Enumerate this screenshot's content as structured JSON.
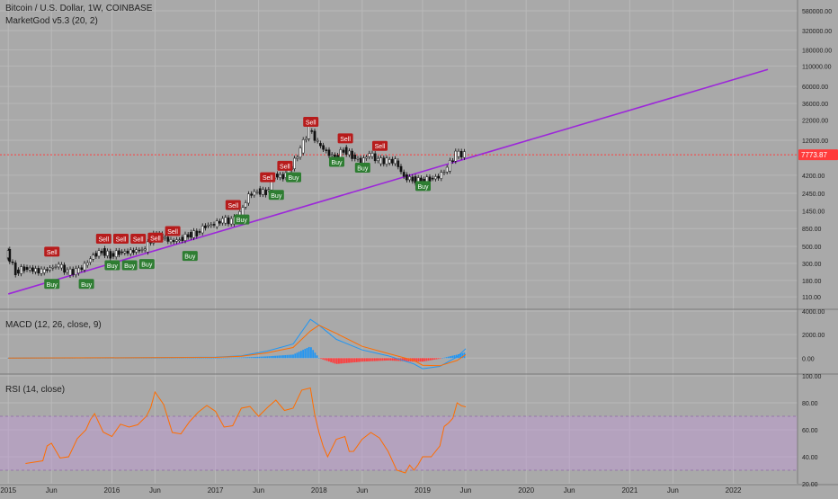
{
  "header": {
    "symbol": "Bitcoin / U.S. Dollar, 1W, COINBASE",
    "indicator": "MarketGod v5.3 (20, 2)"
  },
  "colors": {
    "background": "#a9a9a9",
    "grid": "#b9b9b9",
    "trendline": "#9c27d9",
    "up_candle": "#ffffff",
    "down_candle": "#111111",
    "sell_badge": "#b71c1c",
    "buy_badge": "#2e7d32",
    "price_line": "#ff3b3b",
    "macd_line": "#2196f3",
    "signal_line": "#ff6d00",
    "hist_pos": "#2196f3",
    "hist_neg": "#ff3b3b",
    "rsi_line": "#ff6d00",
    "rsi_band": "#c29ad6"
  },
  "price_tag": "7773.87",
  "chart_data": [
    {
      "type": "candlestick",
      "title": "Bitcoin / U.S. Dollar, 1W, COINBASE",
      "y_scale": "log",
      "ylim": [
        80,
        800000
      ],
      "y_ticks": [
        "580000.00",
        "320000.00",
        "180000.00",
        "110000.00",
        "60000.00",
        "36000.00",
        "22000.00",
        "12000.00",
        "7773.87",
        "4200.00",
        "2450.00",
        "1450.00",
        "850.00",
        "500.00",
        "300.00",
        "180.00",
        "110.00"
      ],
      "x_ticks": [
        "2015",
        "Jun",
        "2016",
        "Jun",
        "2017",
        "Jun",
        "2018",
        "Jun",
        "2019",
        "Jun",
        "2020",
        "Jun",
        "2021",
        "Jun",
        "2022"
      ],
      "grid": true,
      "last_price": 7773.87,
      "price_path": [
        [
          "2015-01",
          330
        ],
        [
          "2015-01",
          420
        ],
        [
          "2015-02",
          230
        ],
        [
          "2015-03",
          260
        ],
        [
          "2015-05",
          235
        ],
        [
          "2015-07",
          285
        ],
        [
          "2015-08",
          230
        ],
        [
          "2015-09",
          235
        ],
        [
          "2015-10",
          280
        ],
        [
          "2015-11",
          380
        ],
        [
          "2015-12",
          430
        ],
        [
          "2016-01",
          380
        ],
        [
          "2016-02",
          420
        ],
        [
          "2016-03",
          420
        ],
        [
          "2016-05",
          460
        ],
        [
          "2016-06",
          680
        ],
        [
          "2016-07",
          660
        ],
        [
          "2016-08",
          580
        ],
        [
          "2016-09",
          610
        ],
        [
          "2016-10",
          700
        ],
        [
          "2016-11",
          740
        ],
        [
          "2016-12",
          930
        ],
        [
          "2017-01",
          960
        ],
        [
          "2017-02",
          1100
        ],
        [
          "2017-03",
          1050
        ],
        [
          "2017-04",
          1300
        ],
        [
          "2017-05",
          2300
        ],
        [
          "2017-06",
          2600
        ],
        [
          "2017-07",
          2500
        ],
        [
          "2017-08",
          4200
        ],
        [
          "2017-09",
          4000
        ],
        [
          "2017-10",
          5500
        ],
        [
          "2017-11",
          9000
        ],
        [
          "2017-12",
          17000
        ],
        [
          "2018-01",
          11000
        ],
        [
          "2018-02",
          8500
        ],
        [
          "2018-03",
          7000
        ],
        [
          "2018-04",
          9000
        ],
        [
          "2018-05",
          7500
        ],
        [
          "2018-06",
          6300
        ],
        [
          "2018-07",
          8000
        ],
        [
          "2018-08",
          6500
        ],
        [
          "2018-09",
          6400
        ],
        [
          "2018-10",
          6400
        ],
        [
          "2018-11",
          4000
        ],
        [
          "2018-12",
          3700
        ],
        [
          "2019-01",
          3500
        ],
        [
          "2019-02",
          3800
        ],
        [
          "2019-03",
          4000
        ],
        [
          "2019-04",
          5200
        ],
        [
          "2019-05",
          8000
        ],
        [
          "2019-06",
          7773.87
        ]
      ],
      "trendline": [
        [
          "2015-01",
          120
        ],
        [
          "2022-05",
          100000
        ]
      ],
      "signals": [
        {
          "label": "Sell",
          "date": "2015-06",
          "price": 420
        },
        {
          "label": "Buy",
          "date": "2015-06",
          "price": 160
        },
        {
          "label": "Buy",
          "date": "2015-10",
          "price": 160
        },
        {
          "label": "Sell",
          "date": "2015-12",
          "price": 620
        },
        {
          "label": "Sell",
          "date": "2016-02",
          "price": 620
        },
        {
          "label": "Sell",
          "date": "2016-04",
          "price": 620
        },
        {
          "label": "Buy",
          "date": "2016-01",
          "price": 280
        },
        {
          "label": "Buy",
          "date": "2016-03",
          "price": 280
        },
        {
          "label": "Buy",
          "date": "2016-05",
          "price": 290
        },
        {
          "label": "Sell",
          "date": "2016-06",
          "price": 640
        },
        {
          "label": "Sell",
          "date": "2016-08",
          "price": 780
        },
        {
          "label": "Buy",
          "date": "2016-10",
          "price": 370
        },
        {
          "label": "Sell",
          "date": "2017-03",
          "price": 1700
        },
        {
          "label": "Buy",
          "date": "2017-04",
          "price": 1100
        },
        {
          "label": "Sell",
          "date": "2017-07",
          "price": 3900
        },
        {
          "label": "Buy",
          "date": "2017-08",
          "price": 2300
        },
        {
          "label": "Sell",
          "date": "2017-09",
          "price": 5500
        },
        {
          "label": "Buy",
          "date": "2017-10",
          "price": 3900
        },
        {
          "label": "Sell",
          "date": "2017-12",
          "price": 20500
        },
        {
          "label": "Buy",
          "date": "2018-03",
          "price": 6200
        },
        {
          "label": "Sell",
          "date": "2018-04",
          "price": 12500
        },
        {
          "label": "Buy",
          "date": "2018-06",
          "price": 5200
        },
        {
          "label": "Sell",
          "date": "2018-08",
          "price": 10000
        },
        {
          "label": "Buy",
          "date": "2019-01",
          "price": 3000
        }
      ]
    },
    {
      "type": "line",
      "title": "MACD (12, 26, close, 9)",
      "ylim": [
        -1200,
        4000
      ],
      "y_ticks": [
        "4000.00",
        "2000.00",
        "0.00"
      ],
      "series": [
        {
          "name": "MACD",
          "values": [
            [
              "2015-01",
              0
            ],
            [
              "2016-06",
              50
            ],
            [
              "2017-01",
              80
            ],
            [
              "2017-04",
              200
            ],
            [
              "2017-07",
              600
            ],
            [
              "2017-10",
              1200
            ],
            [
              "2017-12",
              3300
            ],
            [
              "2018-01",
              2800
            ],
            [
              "2018-03",
              1600
            ],
            [
              "2018-06",
              700
            ],
            [
              "2018-09",
              200
            ],
            [
              "2018-12",
              -500
            ],
            [
              "2019-01",
              -900
            ],
            [
              "2019-03",
              -700
            ],
            [
              "2019-05",
              100
            ],
            [
              "2019-06",
              800
            ]
          ]
        },
        {
          "name": "Signal",
          "values": [
            [
              "2015-01",
              0
            ],
            [
              "2016-06",
              40
            ],
            [
              "2017-01",
              60
            ],
            [
              "2017-04",
              150
            ],
            [
              "2017-07",
              450
            ],
            [
              "2017-10",
              900
            ],
            [
              "2017-12",
              2300
            ],
            [
              "2018-01",
              2800
            ],
            [
              "2018-03",
              2100
            ],
            [
              "2018-06",
              1000
            ],
            [
              "2018-09",
              400
            ],
            [
              "2018-12",
              -200
            ],
            [
              "2019-01",
              -600
            ],
            [
              "2019-03",
              -650
            ],
            [
              "2019-05",
              -200
            ],
            [
              "2019-06",
              300
            ]
          ]
        }
      ]
    },
    {
      "type": "line",
      "title": "RSI (14, close)",
      "ylim": [
        20,
        100
      ],
      "y_ticks": [
        "100.00",
        "80.00",
        "60.00",
        "40.00",
        "20.00"
      ],
      "band": [
        30,
        70
      ],
      "series": [
        {
          "name": "RSI",
          "values": [
            [
              "2015-03",
              35
            ],
            [
              "2015-05",
              37
            ],
            [
              "2015-06",
              50
            ],
            [
              "2015-08",
              40
            ],
            [
              "2015-10",
              60
            ],
            [
              "2015-11",
              72
            ],
            [
              "2016-01",
              55
            ],
            [
              "2016-03",
              62
            ],
            [
              "2016-05",
              70
            ],
            [
              "2016-06",
              88
            ],
            [
              "2016-08",
              58
            ],
            [
              "2016-10",
              66
            ],
            [
              "2016-12",
              78
            ],
            [
              "2017-02",
              62
            ],
            [
              "2017-04",
              76
            ],
            [
              "2017-06",
              70
            ],
            [
              "2017-08",
              82
            ],
            [
              "2017-10",
              76
            ],
            [
              "2017-12",
              91
            ],
            [
              "2018-01",
              58
            ],
            [
              "2018-02",
              40
            ],
            [
              "2018-04",
              55
            ],
            [
              "2018-05",
              44
            ],
            [
              "2018-07",
              58
            ],
            [
              "2018-09",
              44
            ],
            [
              "2018-11",
              28
            ],
            [
              "2018-12",
              30
            ],
            [
              "2019-01",
              40
            ],
            [
              "2019-03",
              48
            ],
            [
              "2019-04",
              65
            ],
            [
              "2019-05",
              80
            ],
            [
              "2019-06",
              77
            ]
          ]
        }
      ]
    }
  ]
}
